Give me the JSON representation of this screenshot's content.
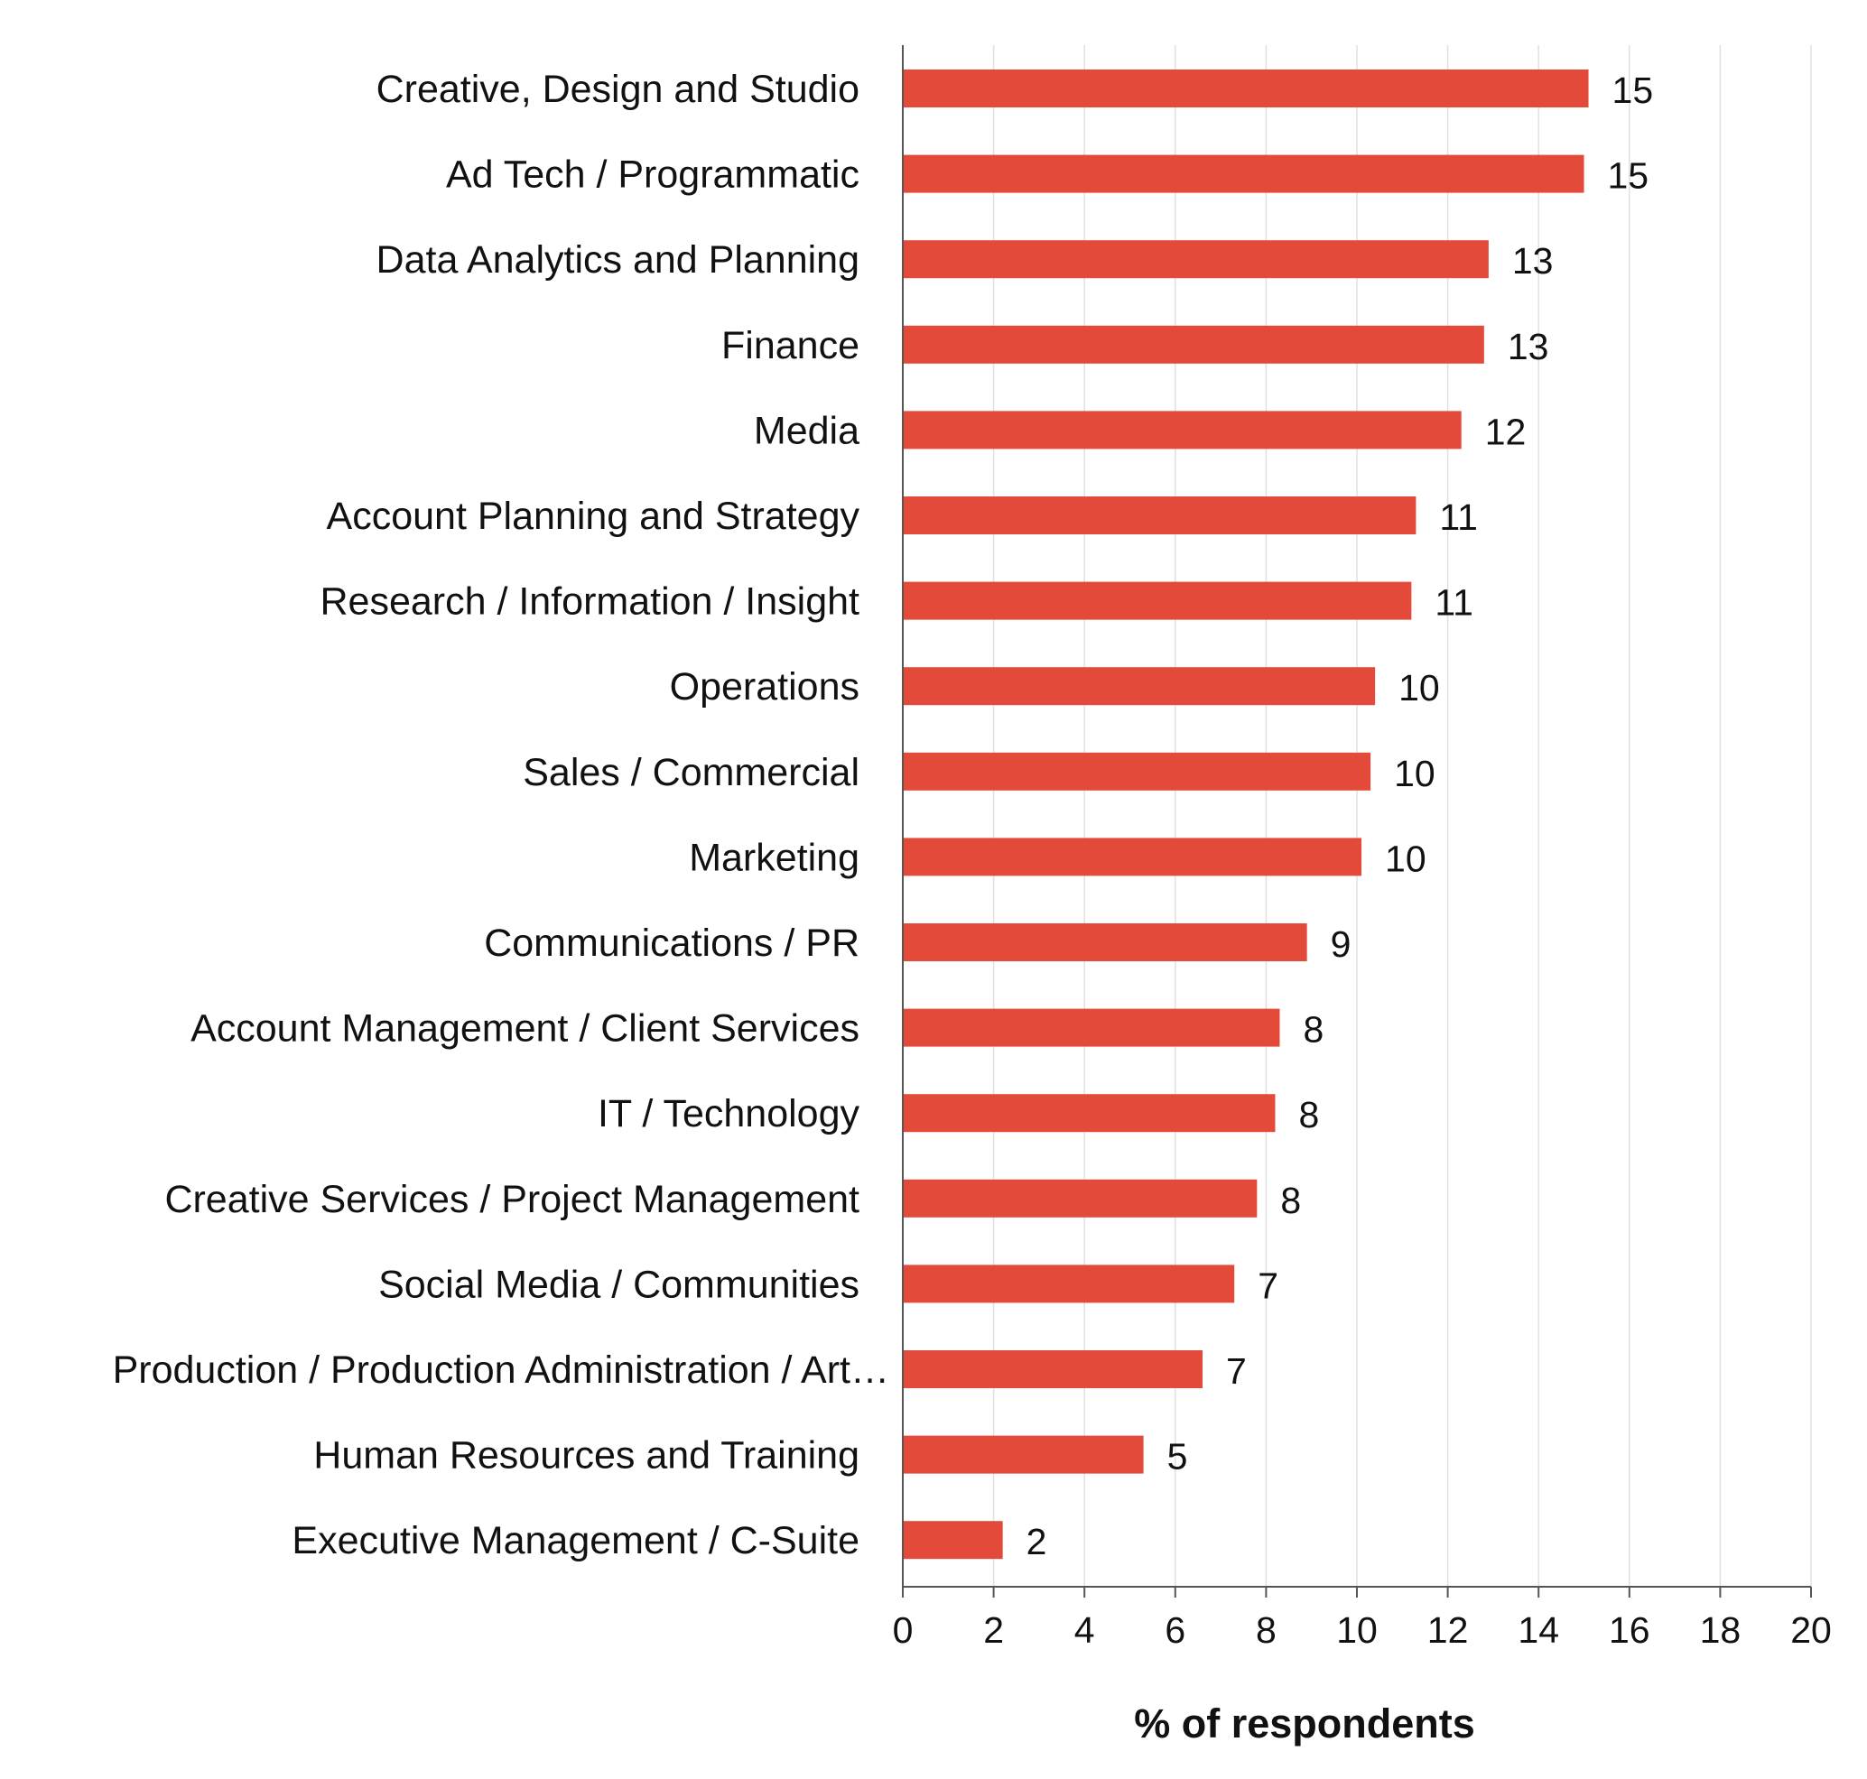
{
  "chart_data": {
    "type": "bar",
    "orientation": "horizontal",
    "categories": [
      "Creative, Design and Studio",
      "Ad Tech / Programmatic",
      "Data Analytics and Planning",
      "Finance",
      "Media",
      "Account Planning and Strategy",
      "Research / Information / Insight",
      "Operations",
      "Sales / Commercial",
      "Marketing",
      "Communications / PR",
      "Account Management / Client Services",
      "IT / Technology",
      "Creative Services / Project Management",
      "Social Media / Communities",
      "Production / Production Administration / Art…",
      "Human Resources and Training",
      "Executive Management / C-Suite"
    ],
    "values": [
      15.1,
      15.0,
      12.9,
      12.8,
      12.3,
      11.3,
      11.2,
      10.4,
      10.3,
      10.1,
      8.9,
      8.3,
      8.2,
      7.8,
      7.3,
      6.6,
      5.3,
      2.2
    ],
    "labels": [
      "15",
      "15",
      "13",
      "13",
      "12",
      "11",
      "11",
      "10",
      "10",
      "10",
      "9",
      "8",
      "8",
      "8",
      "7",
      "7",
      "5",
      "2"
    ],
    "title": "",
    "xlabel": "% of respondents",
    "ylabel": "",
    "xlim": [
      0,
      20
    ],
    "ticks": [
      "0",
      "2",
      "4",
      "6",
      "8",
      "10",
      "12",
      "14",
      "16",
      "18",
      "20"
    ],
    "grid": "vertical",
    "legend": "none",
    "bar_color": "#E34A3A",
    "grid_color": "#E0E0E0",
    "axis_color": "#555555"
  }
}
